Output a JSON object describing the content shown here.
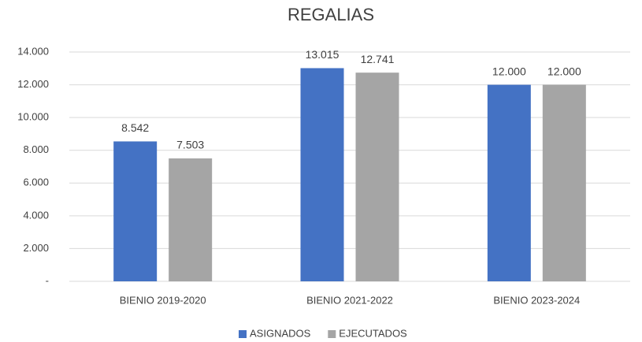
{
  "chart_data": {
    "type": "bar",
    "title": "REGALIAS",
    "categories": [
      "BIENIO 2019-2020",
      "BIENIO 2021-2022",
      "BIENIO 2023-2024"
    ],
    "series": [
      {
        "name": "ASIGNADOS",
        "color": "#4472c4",
        "values": [
          8542,
          13015,
          12000
        ],
        "value_labels": [
          "8.542",
          "13.015",
          "12.000"
        ]
      },
      {
        "name": "EJECUTADOS",
        "color": "#a5a5a5",
        "values": [
          7503,
          12741,
          12000
        ],
        "value_labels": [
          "7.503",
          "12.741",
          "12.000"
        ]
      }
    ],
    "ylim": [
      0,
      14000
    ],
    "yticks": [
      {
        "value": 0,
        "label": "-"
      },
      {
        "value": 2000,
        "label": "2.000"
      },
      {
        "value": 4000,
        "label": "4.000"
      },
      {
        "value": 6000,
        "label": "6.000"
      },
      {
        "value": 8000,
        "label": "8.000"
      },
      {
        "value": 10000,
        "label": "10.000"
      },
      {
        "value": 12000,
        "label": "12.000"
      },
      {
        "value": 14000,
        "label": "14.000"
      }
    ],
    "grid": true,
    "legend": "bottom"
  }
}
